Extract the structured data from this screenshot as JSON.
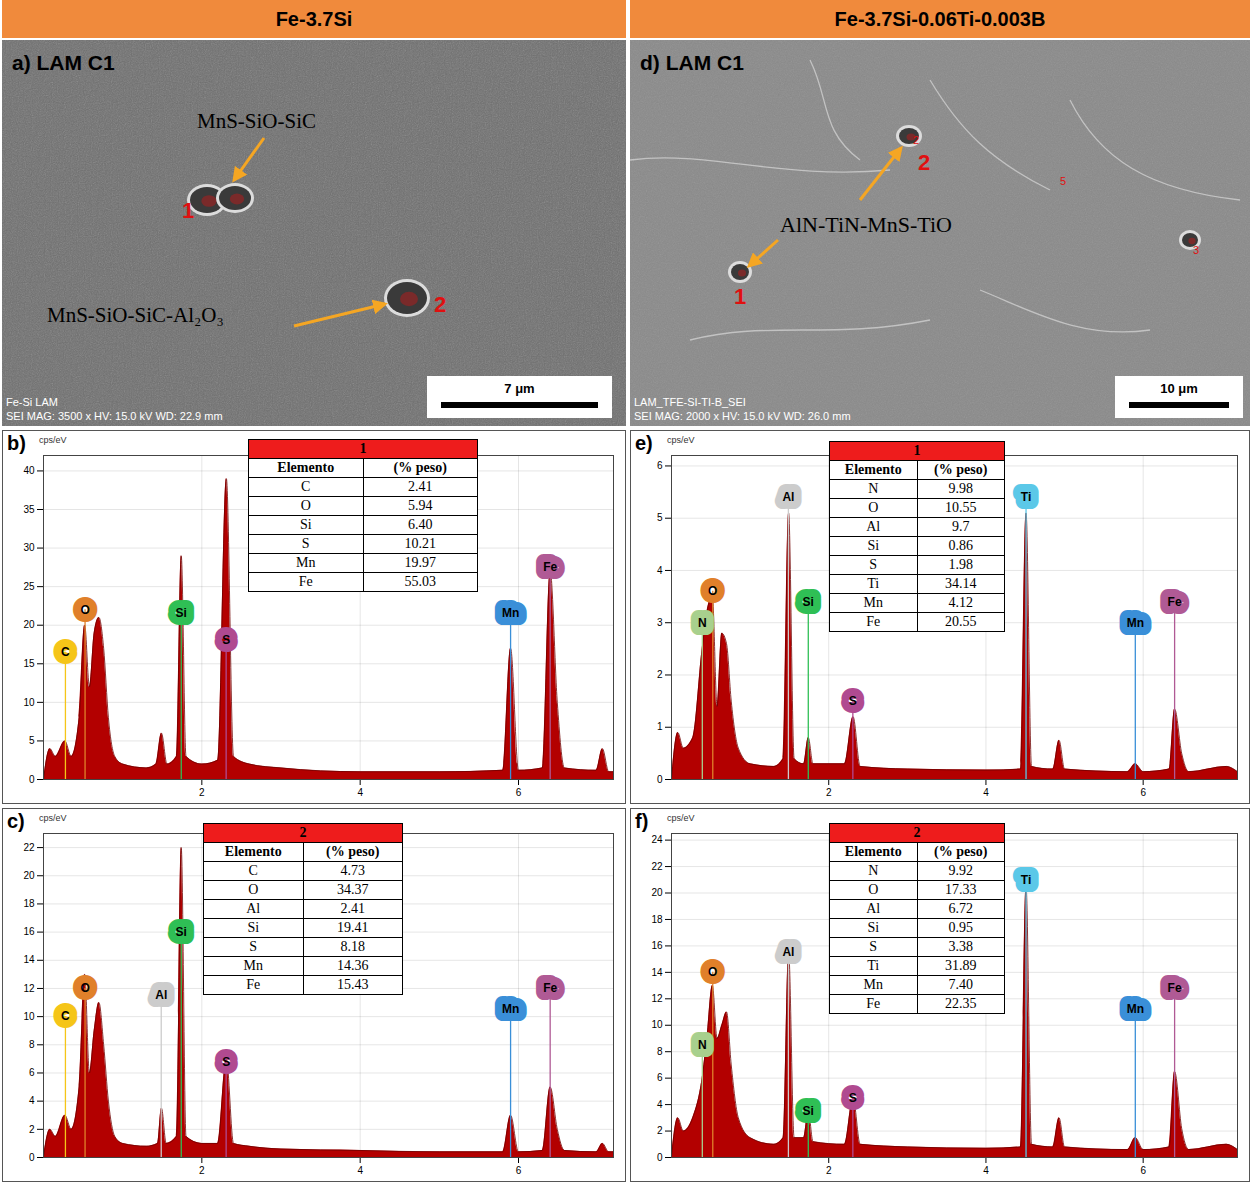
{
  "headers": [
    "Fe-3.7Si",
    "Fe-3.7Si-0.06Ti-0.003B"
  ],
  "micrographs": [
    {
      "panel": "a) LAM C1",
      "labels": [
        "MnS-SiO-SiC",
        "MnS-SiO-SiC-Al₂O₃"
      ],
      "points": [
        "1",
        "2"
      ],
      "scale_bar": "7 μm",
      "footer": [
        "Fe-Si LAM",
        "SEI MAG: 3500 x HV: 15.0 kV WD: 22.9 mm"
      ]
    },
    {
      "panel": "d) LAM C1",
      "labels": [
        "AlN-TiN-MnS-TiO"
      ],
      "points": [
        "1",
        "2"
      ],
      "small_points": [
        "2",
        "3",
        "5"
      ],
      "scale_bar": "10 μm",
      "footer": [
        "LAM_TFE-SI-TI-B_SEI",
        "SEI MAG: 2000 x HV: 15.0 kV WD: 26.0 mm"
      ]
    }
  ],
  "chart_data": [
    {
      "type": "area",
      "panel": "b)",
      "ylabel": "cps/eV",
      "color": "#b30000",
      "grid": true,
      "xlim": [
        0,
        7.2
      ],
      "xticks": [
        2,
        4,
        6
      ],
      "ylim": [
        0,
        42
      ],
      "yticks": [
        0,
        5,
        10,
        15,
        20,
        25,
        30,
        35,
        40
      ],
      "x": [
        0,
        0.08,
        0.15,
        0.27,
        0.35,
        0.45,
        0.52,
        0.58,
        0.64,
        0.7,
        0.76,
        0.82,
        0.9,
        1.0,
        1.3,
        1.42,
        1.49,
        1.56,
        1.68,
        1.74,
        1.8,
        2.0,
        2.2,
        2.31,
        2.4,
        2.6,
        3,
        4,
        5,
        5.8,
        5.9,
        6.0,
        6.3,
        6.4,
        6.49,
        6.58,
        6.98,
        7.06,
        7.14,
        7.2
      ],
      "values": [
        0,
        4,
        3,
        5,
        3,
        8,
        20,
        12,
        19,
        21,
        17,
        8,
        3,
        2,
        1.5,
        2,
        6,
        2,
        3,
        29,
        3,
        2,
        2.5,
        39,
        3,
        2,
        1.5,
        1,
        1,
        1.2,
        17,
        1.2,
        1.5,
        27,
        10,
        1.5,
        1.2,
        4,
        1,
        1
      ],
      "markers": [
        {
          "element": "C",
          "energy": 0.277,
          "height": 16.5,
          "color": "#f5c518"
        },
        {
          "element": "O",
          "energy": 0.525,
          "height": 22,
          "color": "#e0802a"
        },
        {
          "element": "Si",
          "energy": 1.74,
          "height": 21.5,
          "color": "#2fbf55"
        },
        {
          "element": "S",
          "energy": 2.307,
          "height": 18,
          "color": "#b04a90"
        },
        {
          "element": "Mn",
          "energy": 5.9,
          "height": 21.5,
          "color": "#3a8fd8"
        },
        {
          "element": "Fe",
          "energy": 6.4,
          "height": 27.5,
          "color": "#b05a95"
        }
      ],
      "table": {
        "title": "1",
        "columns": [
          "Elemento",
          "(% peso)"
        ],
        "rows": [
          [
            "C",
            "2.41"
          ],
          [
            "O",
            "5.94"
          ],
          [
            "Si",
            "6.40"
          ],
          [
            "S",
            "10.21"
          ],
          [
            "Mn",
            "19.97"
          ],
          [
            "Fe",
            "55.03"
          ]
        ]
      }
    },
    {
      "type": "area",
      "panel": "c)",
      "ylabel": "cps/eV",
      "color": "#b30000",
      "grid": true,
      "xlim": [
        0,
        7.2
      ],
      "xticks": [
        2,
        4,
        6
      ],
      "ylim": [
        0,
        23
      ],
      "yticks": [
        0,
        2,
        4,
        6,
        8,
        10,
        12,
        14,
        16,
        18,
        20,
        22
      ],
      "x": [
        0,
        0.08,
        0.15,
        0.27,
        0.35,
        0.45,
        0.52,
        0.58,
        0.64,
        0.7,
        0.76,
        0.82,
        0.9,
        1.0,
        1.3,
        1.44,
        1.49,
        1.55,
        1.68,
        1.74,
        1.8,
        2.0,
        2.2,
        2.31,
        2.4,
        2.6,
        3,
        4,
        5,
        5.8,
        5.9,
        6.0,
        6.3,
        6.4,
        6.49,
        6.58,
        6.98,
        7.06,
        7.14,
        7.2
      ],
      "values": [
        0,
        2,
        1.5,
        3,
        2,
        5,
        13,
        6,
        9,
        11,
        8,
        4,
        1.5,
        1,
        0.8,
        1,
        3.5,
        1,
        1.5,
        22,
        1.5,
        1,
        1,
        7,
        1,
        0.8,
        0.6,
        0.5,
        0.4,
        0.4,
        3,
        0.4,
        0.5,
        5,
        2,
        0.5,
        0.4,
        1,
        0.4,
        0.4
      ],
      "markers": [
        {
          "element": "C",
          "energy": 0.277,
          "height": 10,
          "color": "#f5c518"
        },
        {
          "element": "O",
          "energy": 0.525,
          "height": 12,
          "color": "#e0802a"
        },
        {
          "element": "Al",
          "energy": 1.487,
          "height": 11.5,
          "color": "#cccccc"
        },
        {
          "element": "Si",
          "energy": 1.74,
          "height": 16,
          "color": "#2fbf55"
        },
        {
          "element": "S",
          "energy": 2.307,
          "height": 6.8,
          "color": "#b04a90"
        },
        {
          "element": "Mn",
          "energy": 5.9,
          "height": 10.5,
          "color": "#3a8fd8"
        },
        {
          "element": "Fe",
          "energy": 6.4,
          "height": 12,
          "color": "#b05a95"
        }
      ],
      "table": {
        "title": "2",
        "columns": [
          "Elemento",
          "(% peso)"
        ],
        "rows": [
          [
            "C",
            "4.73"
          ],
          [
            "O",
            "34.37"
          ],
          [
            "Al",
            "2.41"
          ],
          [
            "Si",
            "19.41"
          ],
          [
            "S",
            "8.18"
          ],
          [
            "Mn",
            "14.36"
          ],
          [
            "Fe",
            "15.43"
          ]
        ]
      }
    },
    {
      "type": "area",
      "panel": "e)",
      "ylabel": "cps/eV",
      "color": "#b30000",
      "grid": true,
      "xlim": [
        0,
        7.2
      ],
      "xticks": [
        2,
        4,
        6
      ],
      "ylim": [
        0,
        6.2
      ],
      "yticks": [
        0,
        1,
        2,
        3,
        4,
        5,
        6
      ],
      "x": [
        0,
        0.08,
        0.15,
        0.27,
        0.39,
        0.45,
        0.52,
        0.58,
        0.64,
        0.7,
        0.76,
        0.85,
        1.0,
        1.3,
        1.42,
        1.49,
        1.56,
        1.68,
        1.74,
        1.8,
        2.2,
        2.31,
        2.4,
        3,
        4,
        4.44,
        4.51,
        4.58,
        4.85,
        4.93,
        5.0,
        5.8,
        5.9,
        6.0,
        6.33,
        6.4,
        6.49,
        6.58,
        7.06,
        7.2
      ],
      "values": [
        0,
        0.9,
        0.6,
        0.8,
        2.5,
        3.2,
        3.5,
        1.4,
        2.8,
        2.6,
        1.5,
        0.6,
        0.3,
        0.25,
        0.4,
        5.1,
        0.4,
        0.3,
        0.8,
        0.3,
        0.3,
        1.2,
        0.25,
        0.2,
        0.18,
        0.2,
        5.1,
        0.25,
        0.2,
        0.75,
        0.2,
        0.15,
        0.3,
        0.15,
        0.2,
        1.35,
        0.5,
        0.15,
        0.25,
        0.15
      ],
      "markers": [
        {
          "element": "N",
          "energy": 0.392,
          "height": 3.0,
          "color": "#a8d08d"
        },
        {
          "element": "O",
          "energy": 0.525,
          "height": 3.6,
          "color": "#e0802a"
        },
        {
          "element": "Al",
          "energy": 1.487,
          "height": 5.4,
          "color": "#cccccc"
        },
        {
          "element": "Si",
          "energy": 1.74,
          "height": 3.4,
          "color": "#2fbf55"
        },
        {
          "element": "S",
          "energy": 2.307,
          "height": 1.5,
          "color": "#b04a90"
        },
        {
          "element": "Ti",
          "energy": 4.51,
          "height": 5.4,
          "color": "#5bc8e8"
        },
        {
          "element": "Mn",
          "energy": 5.9,
          "height": 3.0,
          "color": "#3a8fd8"
        },
        {
          "element": "Fe",
          "energy": 6.4,
          "height": 3.4,
          "color": "#b05a95"
        }
      ],
      "table": {
        "title": "1",
        "columns": [
          "Elemento",
          "(% peso)"
        ],
        "rows": [
          [
            "N",
            "9.98"
          ],
          [
            "O",
            "10.55"
          ],
          [
            "Al",
            "9.7"
          ],
          [
            "Si",
            "0.86"
          ],
          [
            "S",
            "1.98"
          ],
          [
            "Ti",
            "34.14"
          ],
          [
            "Mn",
            "4.12"
          ],
          [
            "Fe",
            "20.55"
          ]
        ]
      }
    },
    {
      "type": "area",
      "panel": "f)",
      "ylabel": "cps/eV",
      "color": "#b30000",
      "grid": true,
      "xlim": [
        0,
        7.2
      ],
      "xticks": [
        2,
        4,
        6
      ],
      "ylim": [
        0,
        24.5
      ],
      "yticks": [
        0,
        2,
        4,
        6,
        8,
        10,
        12,
        14,
        16,
        18,
        20,
        22,
        24
      ],
      "x": [
        0,
        0.08,
        0.15,
        0.27,
        0.39,
        0.45,
        0.52,
        0.58,
        0.64,
        0.7,
        0.76,
        0.85,
        1.0,
        1.3,
        1.42,
        1.49,
        1.56,
        1.68,
        1.74,
        1.8,
        2.2,
        2.31,
        2.4,
        3,
        4,
        4.44,
        4.51,
        4.58,
        4.85,
        4.93,
        5.0,
        5.8,
        5.9,
        6.0,
        6.33,
        6.4,
        6.49,
        6.58,
        7.06,
        7.2
      ],
      "values": [
        0,
        3,
        2,
        3,
        6,
        9,
        13,
        9,
        10,
        11,
        7,
        3,
        1.5,
        1,
        1.5,
        15.5,
        1.5,
        1.5,
        3.5,
        1.2,
        1,
        4.5,
        1,
        0.8,
        0.7,
        0.8,
        20.5,
        1,
        0.8,
        3,
        0.8,
        0.6,
        1.5,
        0.6,
        0.8,
        6.5,
        2.2,
        0.6,
        1,
        0.6
      ],
      "markers": [
        {
          "element": "N",
          "energy": 0.392,
          "height": 8.5,
          "color": "#a8d08d"
        },
        {
          "element": "O",
          "energy": 0.525,
          "height": 14,
          "color": "#e0802a"
        },
        {
          "element": "Al",
          "energy": 1.487,
          "height": 15.5,
          "color": "#cccccc"
        },
        {
          "element": "Si",
          "energy": 1.74,
          "height": 3.5,
          "color": "#2fbf55"
        },
        {
          "element": "S",
          "energy": 2.307,
          "height": 4.5,
          "color": "#b04a90"
        },
        {
          "element": "Ti",
          "energy": 4.51,
          "height": 21,
          "color": "#5bc8e8"
        },
        {
          "element": "Mn",
          "energy": 5.9,
          "height": 11.2,
          "color": "#3a8fd8"
        },
        {
          "element": "Fe",
          "energy": 6.4,
          "height": 12.8,
          "color": "#b05a95"
        }
      ],
      "table": {
        "title": "2",
        "columns": [
          "Elemento",
          "(% peso)"
        ],
        "rows": [
          [
            "N",
            "9.92"
          ],
          [
            "O",
            "17.33"
          ],
          [
            "Al",
            "6.72"
          ],
          [
            "Si",
            "0.95"
          ],
          [
            "S",
            "3.38"
          ],
          [
            "Ti",
            "31.89"
          ],
          [
            "Mn",
            "7.40"
          ],
          [
            "Fe",
            "22.35"
          ]
        ]
      }
    }
  ]
}
